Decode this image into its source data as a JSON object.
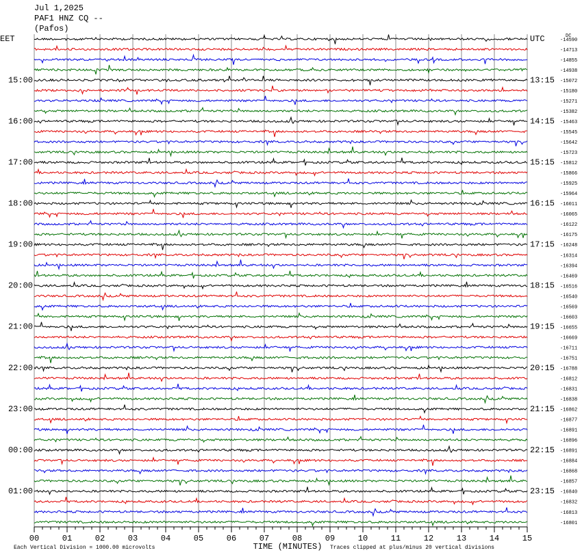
{
  "header": {
    "date": "Jul 1,2025",
    "station": "PAF1 HNZ CQ --",
    "location": "(Pafos)"
  },
  "left_timezone": "EET",
  "right_timezone": "UTC",
  "dc_label": "DC",
  "left_labels": [
    "EET",
    null,
    null,
    null,
    "15:00",
    null,
    null,
    null,
    "16:00",
    null,
    null,
    null,
    "17:00",
    null,
    null,
    null,
    "18:00",
    null,
    null,
    null,
    "19:00",
    null,
    null,
    null,
    "20:00",
    null,
    null,
    null,
    "21:00",
    null,
    null,
    null,
    "22:00",
    null,
    null,
    null,
    "23:00",
    null,
    null,
    null,
    "00:00",
    null,
    null,
    null,
    "01:00",
    null,
    null,
    null
  ],
  "right_labels": [
    "UTC",
    null,
    null,
    null,
    "13:15",
    null,
    null,
    null,
    "14:15",
    null,
    null,
    null,
    "15:15",
    null,
    null,
    null,
    "16:15",
    null,
    null,
    null,
    "17:15",
    null,
    null,
    null,
    "18:15",
    null,
    null,
    null,
    "19:15",
    null,
    null,
    null,
    "20:15",
    null,
    null,
    null,
    "21:15",
    null,
    null,
    null,
    "22:15",
    null,
    null,
    null,
    "23:15",
    null,
    null,
    null
  ],
  "offsets": [
    -14590,
    -14713,
    -14855,
    -14938,
    -15072,
    -15180,
    -15271,
    -15382,
    -15463,
    -15545,
    -15642,
    -15723,
    -15812,
    -15866,
    -15925,
    -15964,
    -16011,
    -16065,
    -16122,
    -16175,
    -16248,
    -16314,
    -16394,
    -16469,
    -16516,
    -16540,
    -16569,
    -16603,
    -16655,
    -16669,
    -16711,
    -16751,
    -16788,
    -16812,
    -16831,
    -16838,
    -16862,
    -16877,
    -16891,
    -16896,
    -16891,
    -16884,
    -16868,
    -16857,
    -16840,
    -16832,
    -16813,
    -16801
  ],
  "x_labels": [
    "00",
    "01",
    "02",
    "03",
    "04",
    "05",
    "06",
    "07",
    "08",
    "09",
    "10",
    "11",
    "12",
    "13",
    "14",
    "15"
  ],
  "x_axis_title": "TIME (MINUTES)",
  "footer": {
    "scale": "Each Vertical Division = 1000.00 microvolts",
    "clip": "Traces clipped at plus/minus 20 vertical divisions"
  }
}
